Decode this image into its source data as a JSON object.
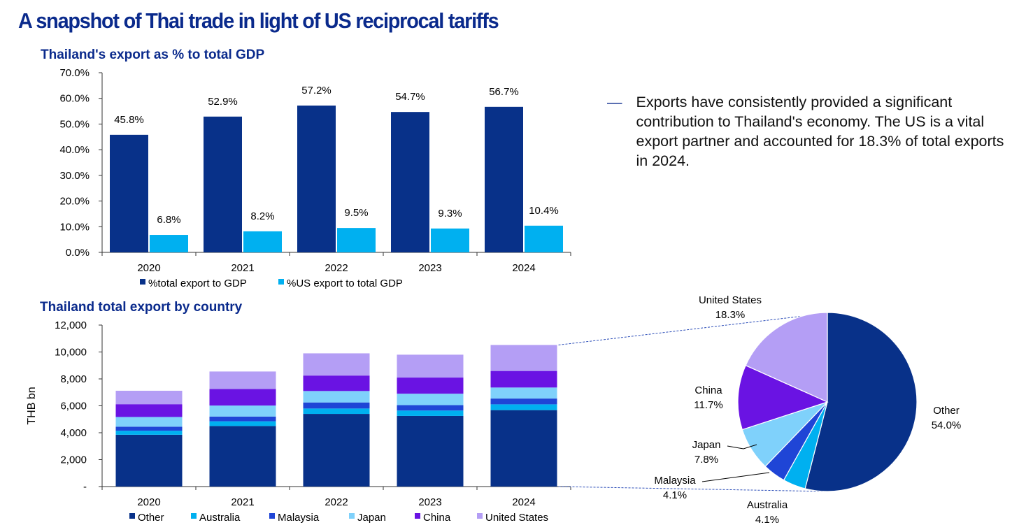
{
  "page": {
    "title": "A snapshot of Thai trade in light of US reciprocal tariffs",
    "commentary_marker": "—",
    "commentary": "Exports have consistently provided a significant contribution to Thailand's economy. The US is a vital export partner and accounted for 18.3% of total exports in 2024."
  },
  "colors": {
    "title": "#0a2a8c",
    "other": "#083189",
    "australia": "#00b0f0",
    "malaysia": "#1f45d6",
    "japan": "#7fd1fb",
    "china": "#6a13e3",
    "united_states": "#b49ef5",
    "us_export_share": "#00b0f0"
  },
  "chart_data": [
    {
      "type": "bar",
      "title": "Thailand's export as % to total GDP",
      "categories": [
        "2020",
        "2021",
        "2022",
        "2023",
        "2024"
      ],
      "series": [
        {
          "name": "%total export to GDP",
          "values": [
            45.8,
            52.9,
            57.2,
            54.7,
            56.7
          ],
          "labels": [
            "45.8%",
            "52.9%",
            "57.2%",
            "54.7%",
            "56.7%"
          ],
          "color": "#083189"
        },
        {
          "name": "%US export to total GDP",
          "values": [
            6.8,
            8.2,
            9.5,
            9.3,
            10.4
          ],
          "labels": [
            "6.8%",
            "8.2%",
            "9.5%",
            "9.3%",
            "10.4%"
          ],
          "color": "#00b0f0"
        }
      ],
      "ylim": [
        0,
        70
      ],
      "yticks": [
        "0.0%",
        "10.0%",
        "20.0%",
        "30.0%",
        "40.0%",
        "50.0%",
        "60.0%",
        "70.0%"
      ],
      "xlabel": "",
      "ylabel": "",
      "legend_position": "bottom"
    },
    {
      "type": "bar",
      "stacked": true,
      "title": "Thailand total export by country",
      "ylabel": "THB bn",
      "xlabel": "",
      "categories": [
        "2020",
        "2021",
        "2022",
        "2023",
        "2024"
      ],
      "series": [
        {
          "name": "Other",
          "values": [
            3850,
            4500,
            5400,
            5250,
            5680
          ],
          "color": "#083189"
        },
        {
          "name": "Australia",
          "values": [
            300,
            350,
            400,
            400,
            430
          ],
          "color": "#00b0f0"
        },
        {
          "name": "Malaysia",
          "values": [
            300,
            350,
            450,
            400,
            430
          ],
          "color": "#1f45d6"
        },
        {
          "name": "Japan",
          "values": [
            720,
            820,
            850,
            850,
            820
          ],
          "color": "#7fd1fb"
        },
        {
          "name": "China",
          "values": [
            950,
            1230,
            1150,
            1200,
            1230
          ],
          "color": "#6a13e3"
        },
        {
          "name": "United States",
          "values": [
            1000,
            1300,
            1650,
            1700,
            1930
          ],
          "color": "#b49ef5"
        }
      ],
      "ylim": [
        0,
        12000
      ],
      "yticks": [
        "-",
        "2,000",
        "4,000",
        "6,000",
        "8,000",
        "10,000",
        "12,000"
      ],
      "legend_position": "bottom"
    },
    {
      "type": "pie",
      "year": "2024",
      "slices": [
        {
          "name": "Other",
          "value": 54.0,
          "label": "54.0%",
          "color": "#083189"
        },
        {
          "name": "Australia",
          "value": 4.1,
          "label": "4.1%",
          "color": "#00b0f0"
        },
        {
          "name": "Malaysia",
          "value": 4.1,
          "label": "4.1%",
          "color": "#1f45d6"
        },
        {
          "name": "Japan",
          "value": 7.8,
          "label": "7.8%",
          "color": "#7fd1fb"
        },
        {
          "name": "China",
          "value": 11.7,
          "label": "11.7%",
          "color": "#6a13e3"
        },
        {
          "name": "United States",
          "value": 18.3,
          "label": "18.3%",
          "color": "#b49ef5"
        }
      ]
    }
  ]
}
